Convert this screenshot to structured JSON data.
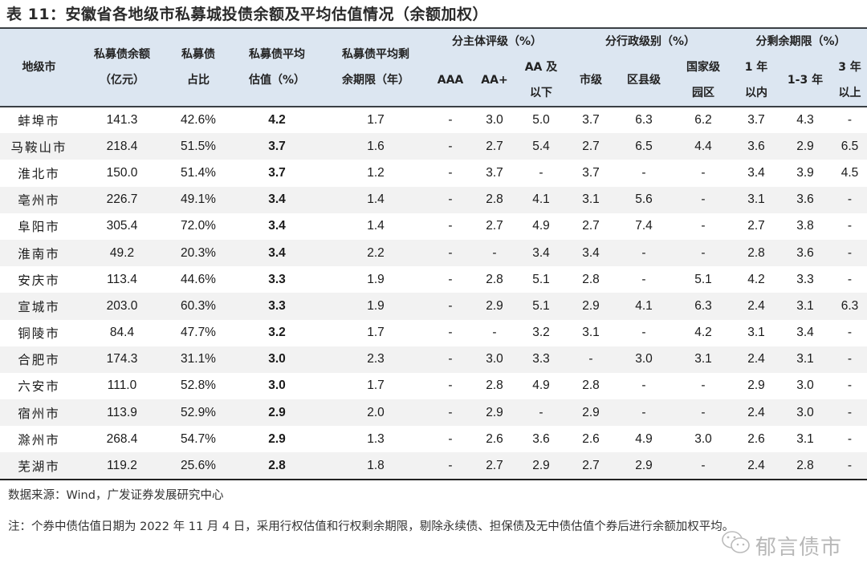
{
  "title": "表 11：安徽省各地级市私募城投债余额及平均估值情况（余额加权）",
  "table": {
    "headers": {
      "city": "地级市",
      "balance_l1": "私募债余额",
      "balance_l2": "（亿元）",
      "share_l1": "私募债",
      "share_l2": "占比",
      "avg_val_l1": "私募债平均",
      "avg_val_l2": "估值（%）",
      "avg_term_l1": "私募债平均剩",
      "avg_term_l2": "余期限（年）",
      "group_rating": "分主体评级（%）",
      "group_admin": "分行政级别（%）",
      "group_term": "分剩余期限（%）",
      "aaa": "AAA",
      "aa_plus": "AA+",
      "aa_below_l1": "AA 及",
      "aa_below_l2": "以下",
      "city_level": "市级",
      "county_level": "区县级",
      "national_l1": "国家级",
      "national_l2": "园区",
      "lt1_l1": "1 年",
      "lt1_l2": "以内",
      "y1_3": "1-3 年",
      "gt3_l1": "3 年",
      "gt3_l2": "以上"
    },
    "rows": [
      {
        "city": "蚌埠市",
        "balance": "141.3",
        "share": "42.6%",
        "avg_val": "4.2",
        "avg_term": "1.7",
        "aaa": "-",
        "aa_plus": "3.0",
        "aa_below": "5.0",
        "city_level": "3.7",
        "county_level": "6.3",
        "national": "6.2",
        "lt1": "3.7",
        "y1_3": "4.3",
        "gt3": "-"
      },
      {
        "city": "马鞍山市",
        "balance": "218.4",
        "share": "51.5%",
        "avg_val": "3.7",
        "avg_term": "1.6",
        "aaa": "-",
        "aa_plus": "2.7",
        "aa_below": "5.4",
        "city_level": "2.7",
        "county_level": "6.5",
        "national": "4.4",
        "lt1": "3.6",
        "y1_3": "2.9",
        "gt3": "6.5"
      },
      {
        "city": "淮北市",
        "balance": "150.0",
        "share": "51.4%",
        "avg_val": "3.7",
        "avg_term": "1.2",
        "aaa": "-",
        "aa_plus": "3.7",
        "aa_below": "-",
        "city_level": "3.7",
        "county_level": "-",
        "national": "-",
        "lt1": "3.4",
        "y1_3": "3.9",
        "gt3": "4.5"
      },
      {
        "city": "亳州市",
        "balance": "226.7",
        "share": "49.1%",
        "avg_val": "3.4",
        "avg_term": "1.4",
        "aaa": "-",
        "aa_plus": "2.8",
        "aa_below": "4.1",
        "city_level": "3.1",
        "county_level": "5.6",
        "national": "-",
        "lt1": "3.1",
        "y1_3": "3.6",
        "gt3": "-"
      },
      {
        "city": "阜阳市",
        "balance": "305.4",
        "share": "72.0%",
        "avg_val": "3.4",
        "avg_term": "1.4",
        "aaa": "-",
        "aa_plus": "2.7",
        "aa_below": "4.9",
        "city_level": "2.7",
        "county_level": "7.4",
        "national": "-",
        "lt1": "2.7",
        "y1_3": "3.8",
        "gt3": "-"
      },
      {
        "city": "淮南市",
        "balance": "49.2",
        "share": "20.3%",
        "avg_val": "3.4",
        "avg_term": "2.2",
        "aaa": "-",
        "aa_plus": "-",
        "aa_below": "3.4",
        "city_level": "3.4",
        "county_level": "-",
        "national": "-",
        "lt1": "2.8",
        "y1_3": "3.6",
        "gt3": "-"
      },
      {
        "city": "安庆市",
        "balance": "113.4",
        "share": "44.6%",
        "avg_val": "3.3",
        "avg_term": "1.9",
        "aaa": "-",
        "aa_plus": "2.8",
        "aa_below": "5.1",
        "city_level": "2.8",
        "county_level": "-",
        "national": "5.1",
        "lt1": "4.2",
        "y1_3": "3.3",
        "gt3": "-"
      },
      {
        "city": "宣城市",
        "balance": "203.0",
        "share": "60.3%",
        "avg_val": "3.3",
        "avg_term": "1.9",
        "aaa": "-",
        "aa_plus": "2.9",
        "aa_below": "5.1",
        "city_level": "2.9",
        "county_level": "4.1",
        "national": "6.3",
        "lt1": "2.4",
        "y1_3": "3.1",
        "gt3": "6.3"
      },
      {
        "city": "铜陵市",
        "balance": "84.4",
        "share": "47.7%",
        "avg_val": "3.2",
        "avg_term": "1.7",
        "aaa": "-",
        "aa_plus": "-",
        "aa_below": "3.2",
        "city_level": "3.1",
        "county_level": "-",
        "national": "4.2",
        "lt1": "3.1",
        "y1_3": "3.4",
        "gt3": "-"
      },
      {
        "city": "合肥市",
        "balance": "174.3",
        "share": "31.1%",
        "avg_val": "3.0",
        "avg_term": "2.3",
        "aaa": "-",
        "aa_plus": "3.0",
        "aa_below": "3.3",
        "city_level": "-",
        "county_level": "3.0",
        "national": "3.1",
        "lt1": "2.4",
        "y1_3": "3.1",
        "gt3": "-"
      },
      {
        "city": "六安市",
        "balance": "111.0",
        "share": "52.8%",
        "avg_val": "3.0",
        "avg_term": "1.7",
        "aaa": "-",
        "aa_plus": "2.8",
        "aa_below": "4.9",
        "city_level": "2.8",
        "county_level": "-",
        "national": "-",
        "lt1": "2.9",
        "y1_3": "3.0",
        "gt3": "-"
      },
      {
        "city": "宿州市",
        "balance": "113.9",
        "share": "52.9%",
        "avg_val": "2.9",
        "avg_term": "2.0",
        "aaa": "-",
        "aa_plus": "2.9",
        "aa_below": "-",
        "city_level": "2.9",
        "county_level": "-",
        "national": "-",
        "lt1": "2.4",
        "y1_3": "3.0",
        "gt3": "-"
      },
      {
        "city": "滁州市",
        "balance": "268.4",
        "share": "54.7%",
        "avg_val": "2.9",
        "avg_term": "1.3",
        "aaa": "-",
        "aa_plus": "2.6",
        "aa_below": "3.6",
        "city_level": "2.6",
        "county_level": "4.9",
        "national": "3.0",
        "lt1": "2.6",
        "y1_3": "3.1",
        "gt3": "-"
      },
      {
        "city": "芜湖市",
        "balance": "119.2",
        "share": "25.6%",
        "avg_val": "2.8",
        "avg_term": "1.8",
        "aaa": "-",
        "aa_plus": "2.7",
        "aa_below": "2.9",
        "city_level": "2.7",
        "county_level": "2.9",
        "national": "-",
        "lt1": "2.4",
        "y1_3": "2.8",
        "gt3": "-"
      }
    ]
  },
  "source": "数据来源：Wind，广发证券发展研究中心",
  "note": "注：个券中债估值日期为 2022 年 11 月 4 日，采用行权估值和行权剩余期限，剔除永续债、担保债及无中债估值个券后进行余额加权平均。",
  "watermark": {
    "icon": "wechat-icon",
    "text": "郁言债市"
  },
  "colors": {
    "header_bg": "#dce6f1",
    "highlight_red": "#e8141b",
    "stripe": "#f2f2f2"
  }
}
